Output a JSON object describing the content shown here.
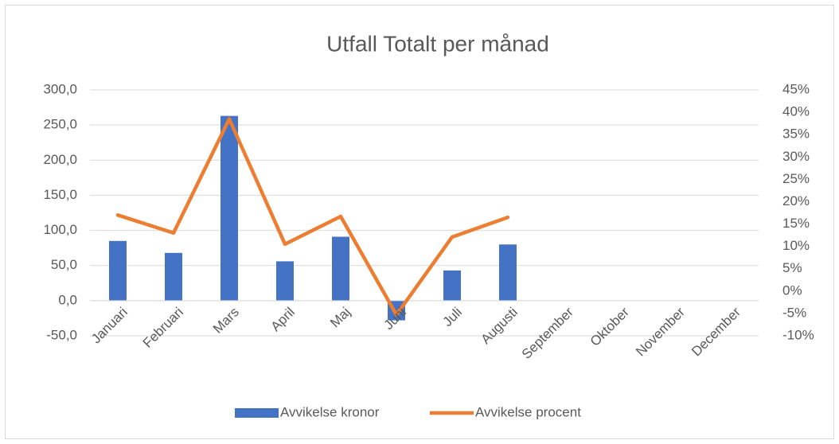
{
  "chart_data": {
    "type": "bar-line",
    "title": "Utfall Totalt per månad",
    "categories": [
      "Januari",
      "Februari",
      "Mars",
      "April",
      "Maj",
      "Juni",
      "Juli",
      "Augusti",
      "September",
      "Oktober",
      "November",
      "December"
    ],
    "series": [
      {
        "name": "Avvikelse kronor",
        "type": "bar",
        "color": "#4472c4",
        "values": [
          85,
          68,
          263,
          56,
          91,
          -28,
          43,
          80,
          null,
          null,
          null,
          null
        ]
      },
      {
        "name": "Avvikelse procent",
        "type": "line",
        "axis": "y2",
        "color": "#ed7d31",
        "values": [
          17,
          13,
          38.5,
          10.5,
          16.7,
          -5.3,
          12.1,
          16.5,
          null,
          null,
          null,
          null
        ]
      }
    ],
    "ylim": [
      -50,
      300
    ],
    "yticks": [
      {
        "value": -50,
        "label": "-50,0"
      },
      {
        "value": 0,
        "label": "0,0"
      },
      {
        "value": 50,
        "label": "50,0"
      },
      {
        "value": 100,
        "label": "100,0"
      },
      {
        "value": 150,
        "label": "150,0"
      },
      {
        "value": 200,
        "label": "200,0"
      },
      {
        "value": 250,
        "label": "250,0"
      },
      {
        "value": 300,
        "label": "300,0"
      }
    ],
    "y2lim": [
      -10,
      45
    ],
    "y2ticks": [
      {
        "value": -10,
        "label": "-10%"
      },
      {
        "value": -5,
        "label": "-5%"
      },
      {
        "value": 0,
        "label": "0%"
      },
      {
        "value": 5,
        "label": "5%"
      },
      {
        "value": 10,
        "label": "10%"
      },
      {
        "value": 15,
        "label": "15%"
      },
      {
        "value": 20,
        "label": "20%"
      },
      {
        "value": 25,
        "label": "25%"
      },
      {
        "value": 30,
        "label": "30%"
      },
      {
        "value": 35,
        "label": "35%"
      },
      {
        "value": 40,
        "label": "40%"
      },
      {
        "value": 45,
        "label": "45%"
      }
    ],
    "grid": true,
    "legend": "bottom"
  }
}
